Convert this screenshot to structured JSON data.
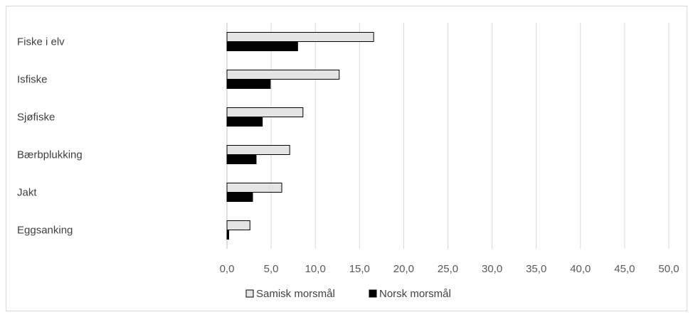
{
  "chart_data": {
    "type": "bar",
    "orientation": "horizontal",
    "categories": [
      "Fiske i elv",
      "Isfiske",
      "Sjøfiske",
      "Bærbplukking",
      "Jakt",
      "Eggsanking"
    ],
    "series": [
      {
        "name": "Samisk morsmål",
        "values": [
          16.6,
          12.7,
          8.6,
          7.1,
          6.2,
          2.6
        ],
        "color": "#e4e4e4",
        "stroke": "#000000"
      },
      {
        "name": "Norsk morsmål",
        "values": [
          8.0,
          4.9,
          4.0,
          3.3,
          2.9,
          0.2
        ],
        "color": "#000000",
        "stroke": "#000000"
      }
    ],
    "xlim": [
      0,
      50
    ],
    "xticks": [
      "0,0",
      "5,0",
      "10,0",
      "15,0",
      "20,0",
      "25,0",
      "30,0",
      "35,0",
      "40,0",
      "45,0",
      "50,0"
    ],
    "grid": true,
    "gridline_color": "#d9d9d9",
    "legend_position": "bottom"
  }
}
